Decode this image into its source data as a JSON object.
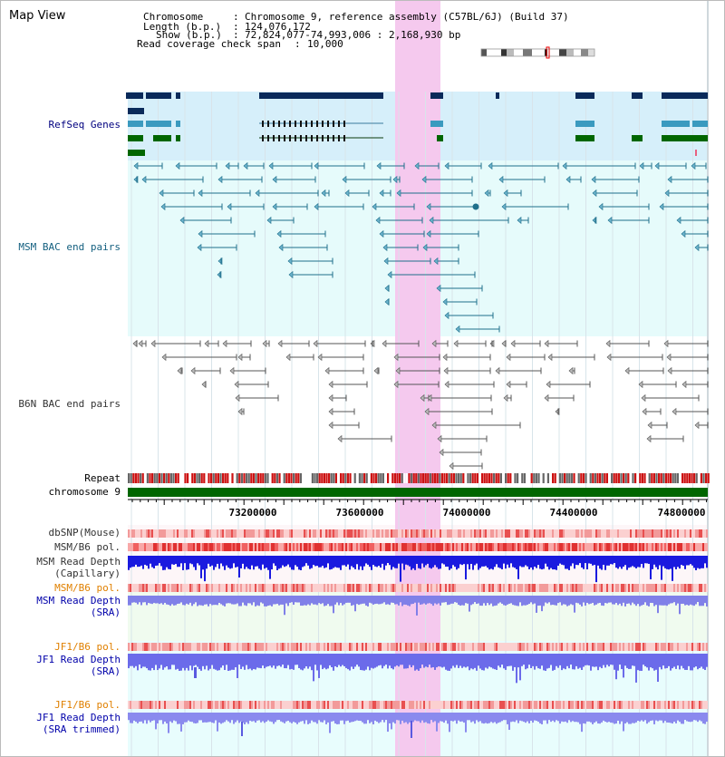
{
  "title": "Map View",
  "header": {
    "chromosome_key": "Chromosome",
    "chromosome_val": "Chromosome 9, reference assembly (C57BL/6J) (Build 37)",
    "length_key": "Length (b.p.)",
    "length_val": "124,076,172",
    "show_key": "Show (b.p.)",
    "show_val": "72,824,077-74,993,006 : 2,168,930 bp",
    "coverage_key": "Read coverage check span",
    "coverage_val": "10,000"
  },
  "tracks": {
    "refseq": "RefSeq Genes",
    "msm_bac": "MSM BAC end pairs",
    "b6n_bac": "B6N BAC end pairs",
    "repeat": "Repeat",
    "chromosome": "chromosome 9",
    "dbsnp": "dbSNP(Mouse)",
    "msm_b6_pol": "MSM/B6 pol.",
    "msm_depth_cap_1": "MSM Read Depth",
    "msm_depth_cap_2": "(Capillary)",
    "msm_b6_pol_sra": "MSM/B6 pol.",
    "msm_depth_sra_1": "MSM Read Depth",
    "msm_depth_sra_2": "(SRA)",
    "jf1_b6_pol": "JF1/B6 pol.",
    "jf1_depth_1": "JF1 Read Depth",
    "jf1_depth_2": "(SRA)",
    "jf1_b6_pol_trim": "JF1/B6 pol.",
    "jf1_trim_1": "JF1 Read Depth",
    "jf1_trim_2": "(SRA trimmed)"
  },
  "axis": {
    "ticks": [
      "73200000",
      "73600000",
      "74000000",
      "74400000",
      "74800000"
    ]
  },
  "colors": {
    "highlight": "#f5c9ee",
    "refseq_bg": "#d6effa",
    "msm_bg": "#e6fbfb",
    "cyan_bg": "#e8fdfd",
    "navy_gene": "#0a2a5a",
    "teal_gene": "#3a9abf",
    "green_gene": "#006600",
    "bac_msm": "#1f6f8b",
    "bac_b6n": "#555555",
    "chrom_green": "#006600",
    "depth_dark": "#0000dd",
    "depth_light": "#7070ee"
  }
}
